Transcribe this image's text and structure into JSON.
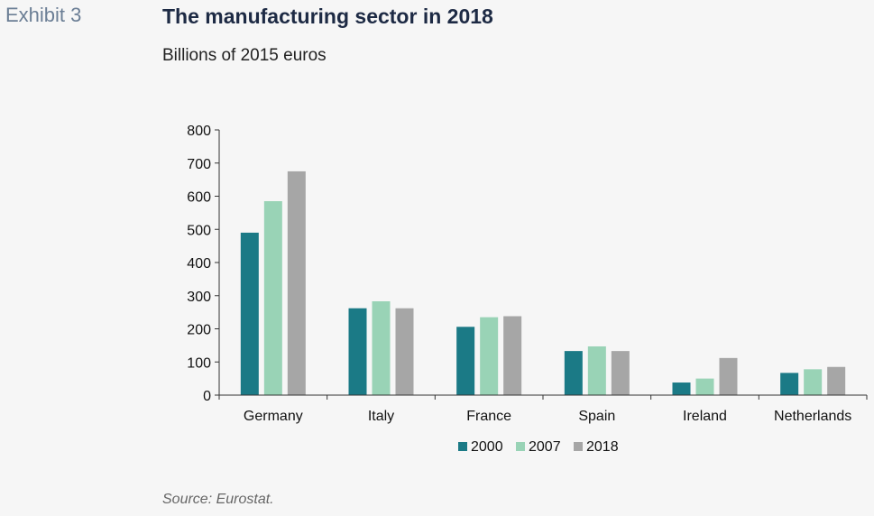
{
  "header": {
    "exhibit_label": "Exhibit 3",
    "title": "The manufacturing sector in 2018",
    "subtitle": "Billions of 2015 euros"
  },
  "footer": {
    "source": "Source: Eurostat."
  },
  "chart_data": {
    "type": "bar",
    "title": "The manufacturing sector in 2018",
    "subtitle": "Billions of 2015 euros",
    "xlabel": "",
    "ylabel": "",
    "categories": [
      "Germany",
      "Italy",
      "France",
      "Spain",
      "Ireland",
      "Netherlands"
    ],
    "series": [
      {
        "name": "2000",
        "color": "#1b7a86",
        "values": [
          490,
          262,
          206,
          133,
          38,
          67
        ]
      },
      {
        "name": "2007",
        "color": "#99d3b6",
        "values": [
          585,
          283,
          235,
          147,
          50,
          78
        ]
      },
      {
        "name": "2018",
        "color": "#a6a6a6",
        "values": [
          675,
          262,
          238,
          133,
          112,
          85
        ]
      }
    ],
    "ylim": [
      0,
      800
    ],
    "yticks": [
      0,
      100,
      200,
      300,
      400,
      500,
      600,
      700,
      800
    ],
    "grid": false,
    "legend": "bottom-center"
  }
}
